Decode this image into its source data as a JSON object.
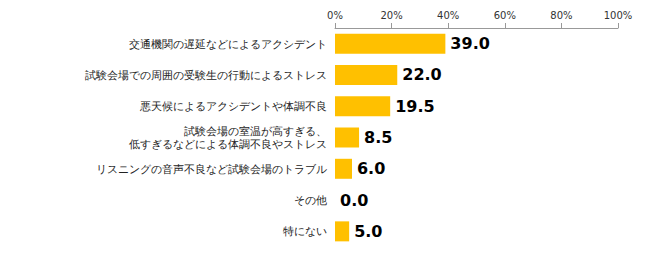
{
  "chart_data": {
    "type": "bar",
    "orientation": "horizontal",
    "categories": [
      "交通機関の遅延などによるアクシデント",
      "試験会場での周囲の受験生の行動によるストレス",
      "悪天候によるアクシデントや体調不良",
      "試験会場の室温が高すぎる、\n低すぎるなどによる体調不良やストレス",
      "リスニングの音声不良など試験会場のトラブル",
      "その他",
      "特にない"
    ],
    "values": [
      39.0,
      22.0,
      19.5,
      8.5,
      6.0,
      0.0,
      5.0
    ],
    "value_labels": [
      "39.0",
      "22.0",
      "19.5",
      "8.5",
      "6.0",
      "0.0",
      "5.0"
    ],
    "color": "#ffc000",
    "xlim": [
      0,
      100
    ],
    "xticks": [
      {
        "value": 0,
        "label": "0%"
      },
      {
        "value": 20,
        "label": "20%"
      },
      {
        "value": 40,
        "label": "40%"
      },
      {
        "value": 60,
        "label": "60%"
      },
      {
        "value": 80,
        "label": "80%"
      },
      {
        "value": 100,
        "label": "100%"
      }
    ],
    "grid": false,
    "data_labels": true
  }
}
